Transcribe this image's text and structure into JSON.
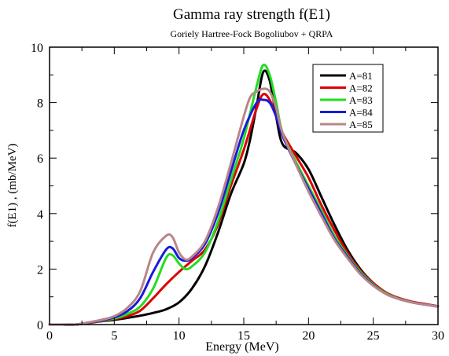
{
  "chart_data": {
    "type": "line",
    "title": "Gamma ray strength f(E1)",
    "subtitle": "Goriely Hartree-Fock Bogoliubov + QRPA",
    "xlabel": "Energy (MeV)",
    "ylabel": "f(E1) , (mb/MeV)",
    "xlim": [
      0,
      30
    ],
    "ylim": [
      0,
      10
    ],
    "xticks": [
      0,
      5,
      10,
      15,
      20,
      25,
      30
    ],
    "yticks": [
      0,
      2,
      4,
      6,
      8,
      10
    ],
    "grid": false,
    "legend_position": "top-right",
    "series": [
      {
        "name": "A=81",
        "color": "#000000",
        "points": [
          [
            0,
            0
          ],
          [
            1,
            0
          ],
          [
            2,
            0
          ],
          [
            3,
            0.06
          ],
          [
            4,
            0.12
          ],
          [
            5,
            0.17
          ],
          [
            6,
            0.24
          ],
          [
            7,
            0.32
          ],
          [
            8,
            0.42
          ],
          [
            9,
            0.55
          ],
          [
            10,
            0.8
          ],
          [
            11,
            1.3
          ],
          [
            12,
            2.1
          ],
          [
            13,
            3.3
          ],
          [
            14,
            4.7
          ],
          [
            15,
            5.8
          ],
          [
            15.5,
            6.7
          ],
          [
            16,
            7.9
          ],
          [
            16.5,
            9.1
          ],
          [
            17,
            8.8
          ],
          [
            17.5,
            7.5
          ],
          [
            18,
            6.5
          ],
          [
            19,
            6.2
          ],
          [
            20,
            5.6
          ],
          [
            21,
            4.6
          ],
          [
            22,
            3.6
          ],
          [
            23,
            2.7
          ],
          [
            24,
            2.0
          ],
          [
            25,
            1.5
          ],
          [
            26,
            1.15
          ],
          [
            27,
            0.95
          ],
          [
            28,
            0.82
          ],
          [
            29,
            0.74
          ],
          [
            30,
            0.66
          ]
        ]
      },
      {
        "name": "A=82",
        "color": "#dd0000",
        "points": [
          [
            0,
            0
          ],
          [
            1,
            0
          ],
          [
            2,
            0
          ],
          [
            3,
            0.06
          ],
          [
            4,
            0.13
          ],
          [
            5,
            0.2
          ],
          [
            6,
            0.3
          ],
          [
            7,
            0.5
          ],
          [
            8,
            0.95
          ],
          [
            9,
            1.45
          ],
          [
            10,
            1.9
          ],
          [
            11,
            2.3
          ],
          [
            12,
            2.7
          ],
          [
            13,
            3.6
          ],
          [
            14,
            5.0
          ],
          [
            15,
            6.3
          ],
          [
            16,
            7.8
          ],
          [
            16.5,
            8.3
          ],
          [
            17,
            8.1
          ],
          [
            17.5,
            7.5
          ],
          [
            18,
            6.9
          ],
          [
            19,
            6.1
          ],
          [
            20,
            5.3
          ],
          [
            21,
            4.3
          ],
          [
            22,
            3.4
          ],
          [
            23,
            2.6
          ],
          [
            24,
            1.95
          ],
          [
            25,
            1.5
          ],
          [
            26,
            1.15
          ],
          [
            27,
            0.95
          ],
          [
            28,
            0.82
          ],
          [
            29,
            0.74
          ],
          [
            30,
            0.66
          ]
        ]
      },
      {
        "name": "A=83",
        "color": "#22dd22",
        "points": [
          [
            0,
            0
          ],
          [
            1,
            0
          ],
          [
            2,
            0
          ],
          [
            3,
            0.07
          ],
          [
            4,
            0.14
          ],
          [
            5,
            0.22
          ],
          [
            6,
            0.38
          ],
          [
            7,
            0.65
          ],
          [
            8,
            1.3
          ],
          [
            9,
            2.4
          ],
          [
            9.5,
            2.5
          ],
          [
            10,
            2.2
          ],
          [
            10.5,
            2.0
          ],
          [
            11,
            2.1
          ],
          [
            12,
            2.6
          ],
          [
            13,
            3.7
          ],
          [
            14,
            5.2
          ],
          [
            15,
            6.7
          ],
          [
            16,
            8.6
          ],
          [
            16.5,
            9.35
          ],
          [
            17,
            9.0
          ],
          [
            17.5,
            8.0
          ],
          [
            18,
            6.9
          ],
          [
            19,
            5.9
          ],
          [
            20,
            5.0
          ],
          [
            21,
            4.1
          ],
          [
            22,
            3.2
          ],
          [
            23,
            2.5
          ],
          [
            24,
            1.9
          ],
          [
            25,
            1.45
          ],
          [
            26,
            1.12
          ],
          [
            27,
            0.93
          ],
          [
            28,
            0.8
          ],
          [
            29,
            0.72
          ],
          [
            30,
            0.65
          ]
        ]
      },
      {
        "name": "A=84",
        "color": "#1a1adc",
        "points": [
          [
            0,
            0
          ],
          [
            1,
            0
          ],
          [
            2,
            0
          ],
          [
            3,
            0.07
          ],
          [
            4,
            0.15
          ],
          [
            5,
            0.26
          ],
          [
            6,
            0.48
          ],
          [
            7,
            0.95
          ],
          [
            8,
            1.9
          ],
          [
            9,
            2.7
          ],
          [
            9.5,
            2.75
          ],
          [
            10,
            2.4
          ],
          [
            10.5,
            2.3
          ],
          [
            11,
            2.4
          ],
          [
            12,
            2.9
          ],
          [
            13,
            4.0
          ],
          [
            14,
            5.5
          ],
          [
            15,
            7.0
          ],
          [
            16,
            8.0
          ],
          [
            16.5,
            8.1
          ],
          [
            17,
            8.0
          ],
          [
            17.5,
            7.5
          ],
          [
            18,
            6.8
          ],
          [
            19,
            5.8
          ],
          [
            20,
            4.9
          ],
          [
            21,
            4.0
          ],
          [
            22,
            3.1
          ],
          [
            23,
            2.45
          ],
          [
            24,
            1.85
          ],
          [
            25,
            1.42
          ],
          [
            26,
            1.1
          ],
          [
            27,
            0.92
          ],
          [
            28,
            0.8
          ],
          [
            29,
            0.72
          ],
          [
            30,
            0.65
          ]
        ]
      },
      {
        "name": "A=85",
        "color": "#b8868a",
        "points": [
          [
            0,
            0
          ],
          [
            1,
            0
          ],
          [
            2,
            0
          ],
          [
            3,
            0.08
          ],
          [
            4,
            0.17
          ],
          [
            5,
            0.3
          ],
          [
            6,
            0.6
          ],
          [
            7,
            1.2
          ],
          [
            8,
            2.6
          ],
          [
            9,
            3.2
          ],
          [
            9.5,
            3.15
          ],
          [
            10,
            2.6
          ],
          [
            10.5,
            2.35
          ],
          [
            11,
            2.45
          ],
          [
            12,
            3.0
          ],
          [
            13,
            4.2
          ],
          [
            14,
            5.8
          ],
          [
            15,
            7.5
          ],
          [
            15.5,
            8.2
          ],
          [
            16,
            8.4
          ],
          [
            16.5,
            8.5
          ],
          [
            17,
            8.4
          ],
          [
            17.5,
            7.8
          ],
          [
            18,
            6.9
          ],
          [
            19,
            5.8
          ],
          [
            20,
            4.8
          ],
          [
            21,
            3.9
          ],
          [
            22,
            3.05
          ],
          [
            23,
            2.4
          ],
          [
            24,
            1.82
          ],
          [
            25,
            1.4
          ],
          [
            26,
            1.1
          ],
          [
            27,
            0.92
          ],
          [
            28,
            0.8
          ],
          [
            29,
            0.72
          ],
          [
            30,
            0.65
          ]
        ]
      }
    ]
  }
}
